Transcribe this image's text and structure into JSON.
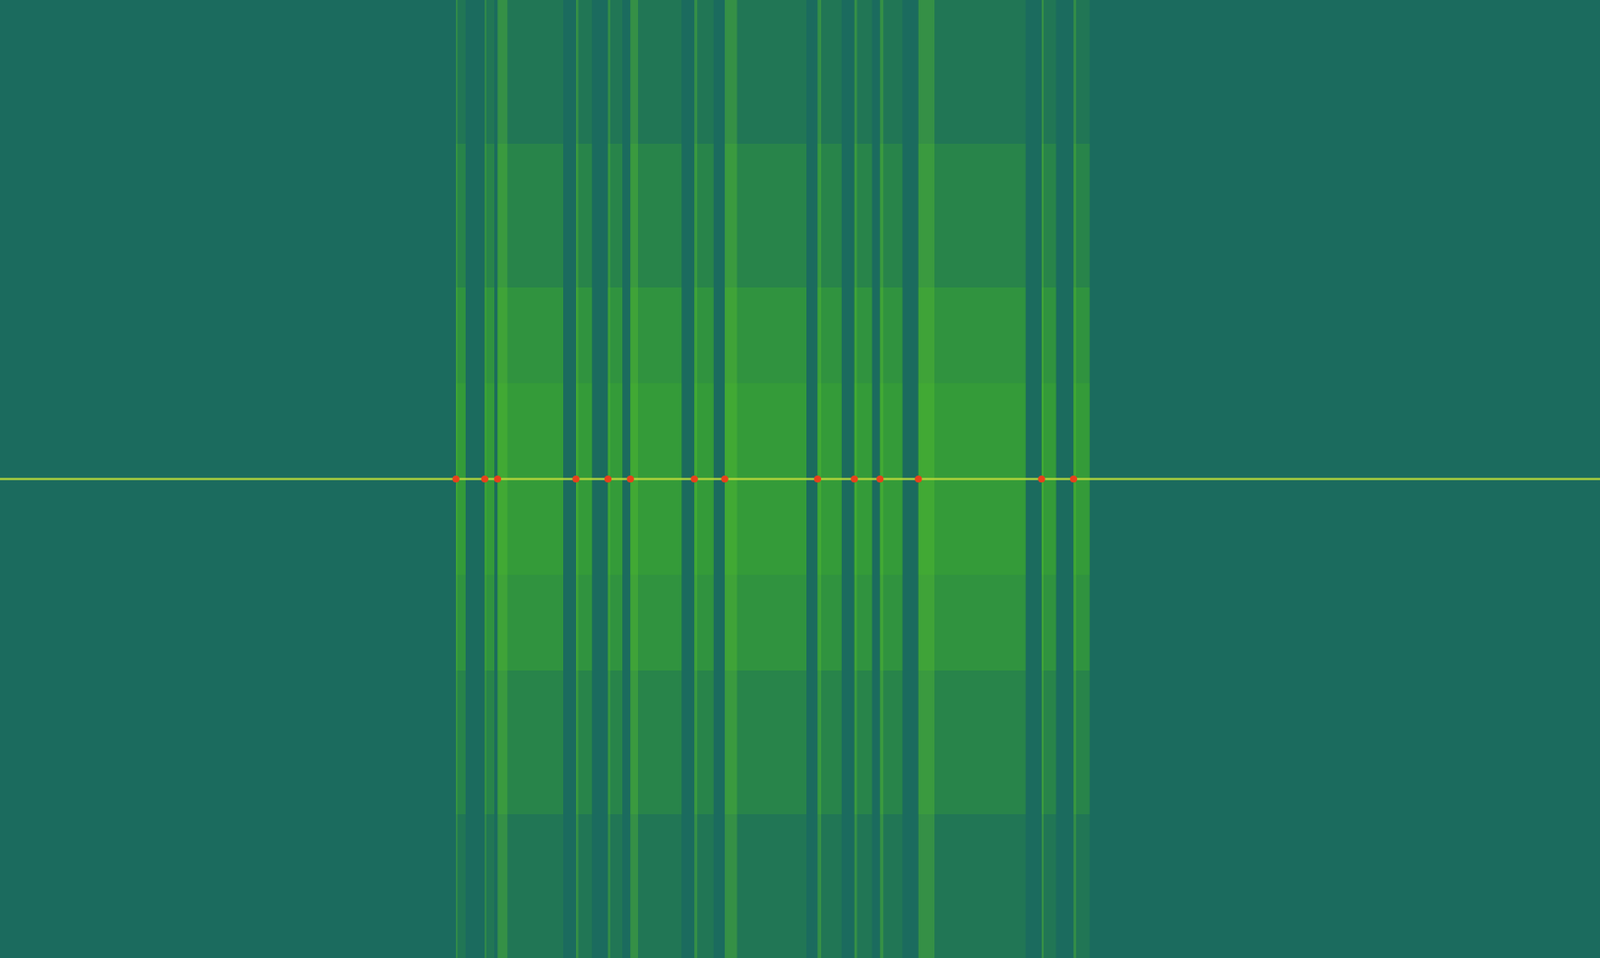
{
  "chart_data": {
    "type": "spectrogram",
    "xlim": [
      0,
      100
    ],
    "ylim": [
      -1,
      1
    ],
    "tick_labels": false,
    "color": "#3fae2a",
    "carrier": 0,
    "bursts": [
      {
        "start": 28.5,
        "end": 29.1
      },
      {
        "start": 30.3,
        "end": 30.9
      },
      {
        "start": 31.1,
        "end": 35.2
      },
      {
        "start": 36.0,
        "end": 37.0
      },
      {
        "start": 38.0,
        "end": 38.9
      },
      {
        "start": 39.4,
        "end": 42.6
      },
      {
        "start": 43.4,
        "end": 44.6
      },
      {
        "start": 45.3,
        "end": 50.4
      },
      {
        "start": 51.1,
        "end": 52.6
      },
      {
        "start": 53.4,
        "end": 54.5
      },
      {
        "start": 55.0,
        "end": 56.4
      },
      {
        "start": 57.4,
        "end": 64.1
      },
      {
        "start": 65.1,
        "end": 66.0
      },
      {
        "start": 67.1,
        "end": 68.1
      }
    ]
  }
}
